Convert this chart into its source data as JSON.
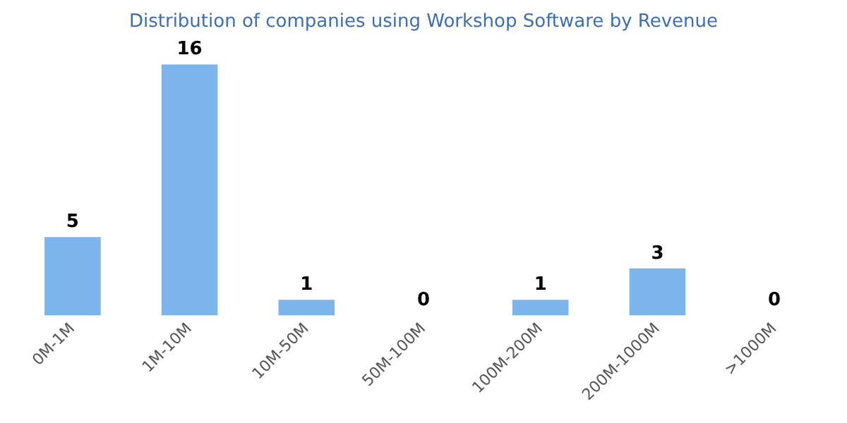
{
  "chart_data": {
    "type": "bar",
    "title": "Distribution of companies using Workshop Software by Revenue",
    "categories": [
      "0M-1M",
      "1M-10M",
      "10M-50M",
      "50M-100M",
      "100M-200M",
      "200M-1000M",
      ">1000M"
    ],
    "values": [
      5,
      16,
      1,
      0,
      1,
      3,
      0
    ],
    "color": "#7cb5ec",
    "data_labels": true,
    "grid": false,
    "legend": false
  }
}
